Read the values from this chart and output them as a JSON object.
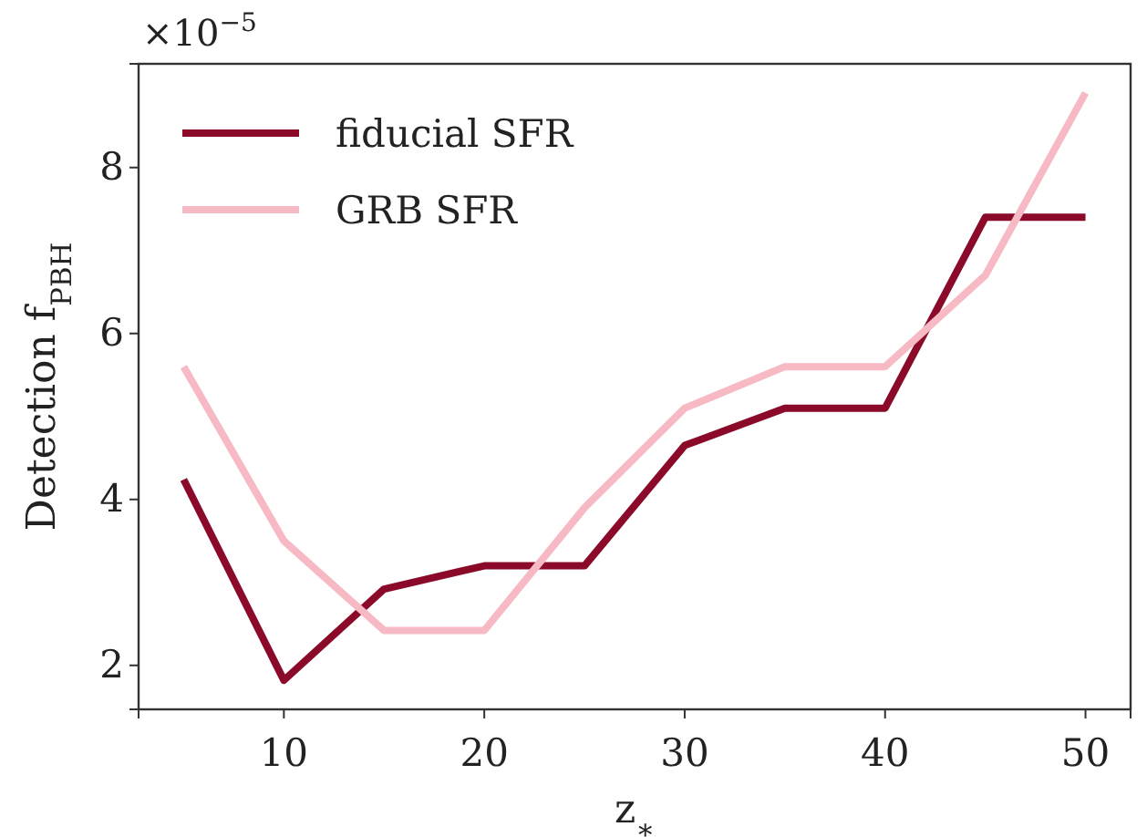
{
  "chart_data": {
    "type": "line",
    "xlabel": "z$_{∗}$",
    "ylabel": "Detection f$_{PBH}$",
    "annotations": [
      "×10$^{−5}$"
    ],
    "x": [
      5,
      10,
      15,
      20,
      25,
      30,
      35,
      40,
      45,
      50
    ],
    "series": [
      {
        "name": "fiducial SFR",
        "color": "#8b0a2a",
        "values": [
          4.24,
          1.82,
          2.92,
          3.2,
          3.2,
          4.65,
          5.1,
          5.1,
          7.4,
          7.4
        ]
      },
      {
        "name": "GRB SFR",
        "color": "#f7b9c3",
        "values": [
          5.6,
          3.5,
          2.42,
          2.42,
          3.9,
          5.1,
          5.6,
          5.6,
          6.7,
          8.9
        ]
      }
    ],
    "xlim": [
      2.75,
      52.25
    ],
    "xticks": [
      10,
      20,
      30,
      40,
      50
    ],
    "ylim": [
      1.47,
      9.25
    ],
    "yticks": [
      2,
      4,
      6,
      8
    ],
    "legend": "top left",
    "grid": false,
    "line_style": "solid",
    "marker": "none"
  }
}
